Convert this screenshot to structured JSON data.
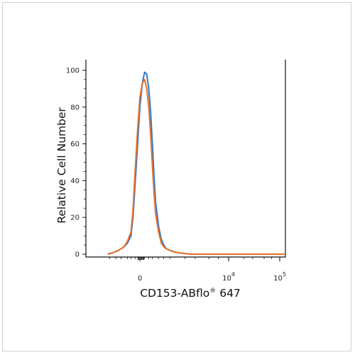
{
  "chart_data": {
    "type": "line",
    "title": "",
    "xlabel": "CD153-ABflo® 647",
    "ylabel": "Relative Cell Number",
    "x_scale": "biexponential",
    "x_ticks": [
      {
        "value": 0,
        "label": "0"
      },
      {
        "value": 10000,
        "label": "10",
        "exponent": "4"
      },
      {
        "value": 100000,
        "label": "10",
        "exponent": "5"
      }
    ],
    "ylim": [
      0,
      100
    ],
    "y_ticks": [
      "0",
      "20",
      "40",
      "60",
      "80",
      "100"
    ],
    "grid": false,
    "legend": "none",
    "series": [
      {
        "color": "#2e78c7",
        "x": [
          -1100,
          -800,
          -600,
          -400,
          -300,
          -200,
          -150,
          -100,
          -50,
          0,
          50,
          100,
          150,
          200,
          250,
          300,
          350,
          400,
          500,
          600,
          700,
          800,
          1000,
          1300,
          1800,
          2500,
          5000,
          20000,
          260000
        ],
        "y": [
          0,
          1,
          2,
          4,
          6,
          10,
          20,
          38,
          58,
          80,
          93,
          99,
          98,
          90,
          77,
          60,
          42,
          28,
          15,
          8,
          5,
          3,
          2,
          1,
          0.5,
          0,
          0,
          0,
          0
        ]
      },
      {
        "color": "#e8702a",
        "x": [
          -1100,
          -800,
          -600,
          -400,
          -300,
          -200,
          -150,
          -100,
          -50,
          0,
          50,
          100,
          150,
          200,
          250,
          300,
          350,
          400,
          500,
          600,
          700,
          800,
          1000,
          1300,
          1800,
          2500,
          5000,
          20000,
          260000
        ],
        "y": [
          0,
          1,
          2,
          4,
          7,
          12,
          24,
          45,
          66,
          85,
          93,
          95,
          90,
          80,
          65,
          48,
          33,
          22,
          12,
          6,
          4,
          3,
          2,
          1,
          0.5,
          0,
          0,
          0,
          0
        ]
      }
    ]
  }
}
